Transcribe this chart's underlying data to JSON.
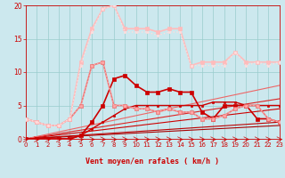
{
  "bg_color": "#cce8ee",
  "grid_color": "#99cccc",
  "xlabel": "Vent moyen/en rafales ( km/h )",
  "xlabel_color": "#cc0000",
  "tick_color": "#cc0000",
  "xlim": [
    0,
    23
  ],
  "ylim": [
    0,
    20
  ],
  "yticks": [
    0,
    5,
    10,
    15,
    20
  ],
  "xticks": [
    0,
    1,
    2,
    3,
    4,
    5,
    6,
    7,
    8,
    9,
    10,
    11,
    12,
    13,
    14,
    15,
    16,
    17,
    18,
    19,
    20,
    21,
    22,
    23
  ],
  "series": [
    {
      "x": [
        0,
        23
      ],
      "y": [
        0,
        2.0
      ],
      "color": "#aa0000",
      "lw": 0.8,
      "ls": "-",
      "marker": null
    },
    {
      "x": [
        0,
        23
      ],
      "y": [
        0,
        2.5
      ],
      "color": "#bb0000",
      "lw": 0.8,
      "ls": "-",
      "marker": null
    },
    {
      "x": [
        0,
        23
      ],
      "y": [
        0,
        4.5
      ],
      "color": "#cc0000",
      "lw": 0.8,
      "ls": "-",
      "marker": null
    },
    {
      "x": [
        0,
        23
      ],
      "y": [
        0,
        6.0
      ],
      "color": "#dd2222",
      "lw": 0.8,
      "ls": "-",
      "marker": null
    },
    {
      "x": [
        0,
        23
      ],
      "y": [
        0,
        8.0
      ],
      "color": "#ee6666",
      "lw": 0.8,
      "ls": "-",
      "marker": null
    },
    {
      "x": [
        0,
        1,
        2,
        3,
        4,
        5,
        6,
        7,
        8,
        9,
        10,
        11,
        12,
        13,
        14,
        15,
        16,
        17,
        18,
        19,
        20,
        21,
        22,
        23
      ],
      "y": [
        0,
        0,
        0,
        0,
        0,
        0.5,
        1.5,
        2.5,
        3.5,
        4.5,
        5,
        5,
        5,
        5,
        5,
        5,
        5,
        5.5,
        5.5,
        5.5,
        5,
        5,
        5,
        5
      ],
      "color": "#cc0000",
      "lw": 1.0,
      "ls": "-",
      "marker": "s",
      "ms": 2.0
    },
    {
      "x": [
        0,
        1,
        2,
        3,
        4,
        5,
        6,
        7,
        8,
        9,
        10,
        11,
        12,
        13,
        14,
        15,
        16,
        17,
        18,
        19,
        20,
        21,
        22,
        23
      ],
      "y": [
        0,
        0,
        0,
        0,
        0,
        0.5,
        2.5,
        5,
        9,
        9.5,
        8,
        7,
        7,
        7.5,
        7,
        7,
        4,
        3,
        5,
        5,
        5,
        3,
        3,
        2.5
      ],
      "color": "#cc0000",
      "lw": 1.2,
      "ls": "-",
      "marker": "s",
      "ms": 2.5
    },
    {
      "x": [
        0,
        1,
        2,
        3,
        4,
        5,
        6,
        7,
        8,
        9,
        10,
        11,
        12,
        13,
        14,
        15,
        16,
        17,
        18,
        19,
        20,
        21,
        22,
        23
      ],
      "y": [
        3,
        2.5,
        2,
        2,
        3,
        5,
        11,
        11.5,
        5,
        5,
        4.5,
        4.5,
        4,
        4.5,
        4,
        4,
        3,
        3,
        3.5,
        4.5,
        5,
        5,
        3,
        2.5
      ],
      "color": "#ee7777",
      "lw": 1.2,
      "ls": "-",
      "marker": "s",
      "ms": 2.5
    },
    {
      "x": [
        0,
        1,
        2,
        3,
        4,
        5,
        6,
        7,
        8,
        9,
        10,
        11,
        12,
        13,
        14,
        15,
        16,
        17,
        18,
        19,
        20,
        21,
        22,
        23
      ],
      "y": [
        3,
        2.5,
        2,
        2,
        3,
        5,
        11,
        11.5,
        5,
        5,
        4.5,
        4.5,
        4,
        4.5,
        4,
        4,
        3,
        3,
        3.5,
        4.5,
        5,
        5,
        3,
        2.5
      ],
      "color": "#ffaaaa",
      "lw": 1.0,
      "ls": ":",
      "marker": "s",
      "ms": 2.0
    },
    {
      "x": [
        0,
        1,
        2,
        3,
        4,
        5,
        6,
        7,
        8,
        9,
        10,
        11,
        12,
        13,
        14,
        15,
        16,
        17,
        18,
        19,
        20,
        21,
        22,
        23
      ],
      "y": [
        3,
        2.5,
        2,
        2,
        3,
        11.5,
        16.5,
        19.5,
        20,
        16.5,
        16.5,
        16.5,
        16,
        16.5,
        16.5,
        11,
        11.5,
        11.5,
        11.5,
        13,
        11.5,
        11.5,
        11.5,
        11.5
      ],
      "color": "#ffbbbb",
      "lw": 1.2,
      "ls": "-",
      "marker": "s",
      "ms": 2.5
    },
    {
      "x": [
        0,
        1,
        2,
        3,
        4,
        5,
        6,
        7,
        8,
        9,
        10,
        11,
        12,
        13,
        14,
        15,
        16,
        17,
        18,
        19,
        20,
        21,
        22,
        23
      ],
      "y": [
        3,
        2.5,
        2,
        2,
        3,
        11,
        16,
        19.5,
        20,
        16,
        16,
        16,
        15.5,
        16,
        16,
        11,
        11,
        11,
        11,
        13,
        11,
        11.5,
        11,
        11.5
      ],
      "color": "#ffdddd",
      "lw": 1.0,
      "ls": ":",
      "marker": "s",
      "ms": 2.0
    }
  ],
  "arrow_color": "#cc0000"
}
